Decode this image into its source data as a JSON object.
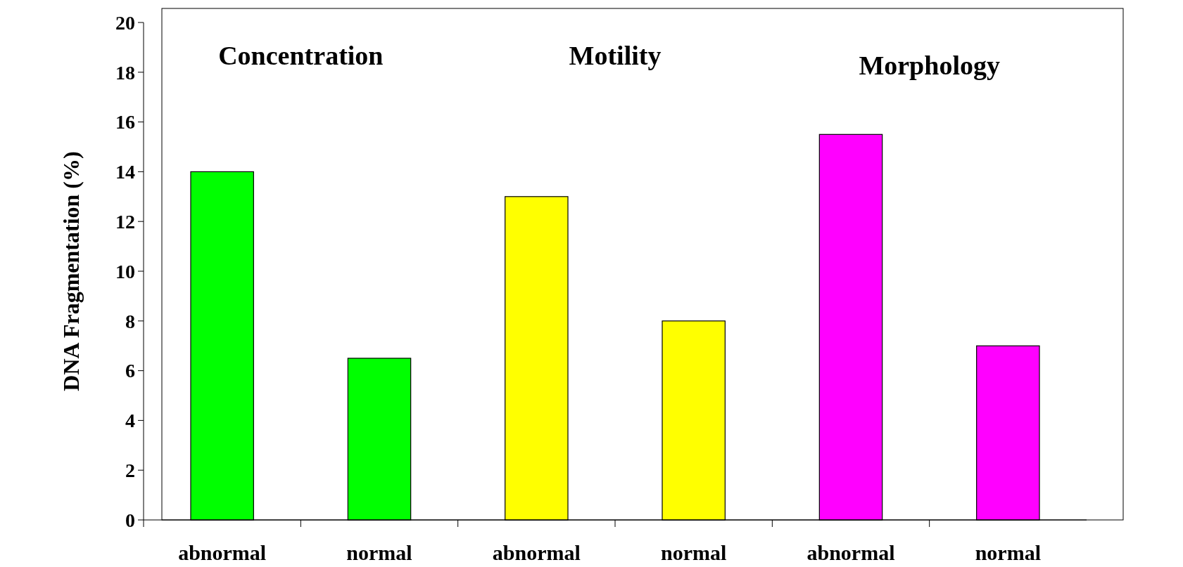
{
  "chart_data": {
    "type": "bar",
    "ylabel": "DNA Fragmentation (%)",
    "categories": [
      "abnormal",
      "normal",
      "abnormal",
      "normal",
      "abnormal",
      "normal"
    ],
    "values": [
      14,
      6.5,
      13,
      8,
      15.5,
      7
    ],
    "colors": [
      "#00ff00",
      "#00ff00",
      "#ffff00",
      "#ffff00",
      "#ff00ff",
      "#ff00ff"
    ],
    "ylim": [
      0,
      20
    ],
    "yticks": [
      0,
      2,
      4,
      6,
      8,
      10,
      12,
      14,
      16,
      18,
      20
    ],
    "grid": false,
    "annotations": [
      "Concentration",
      "Motility",
      "Morphology"
    ]
  }
}
